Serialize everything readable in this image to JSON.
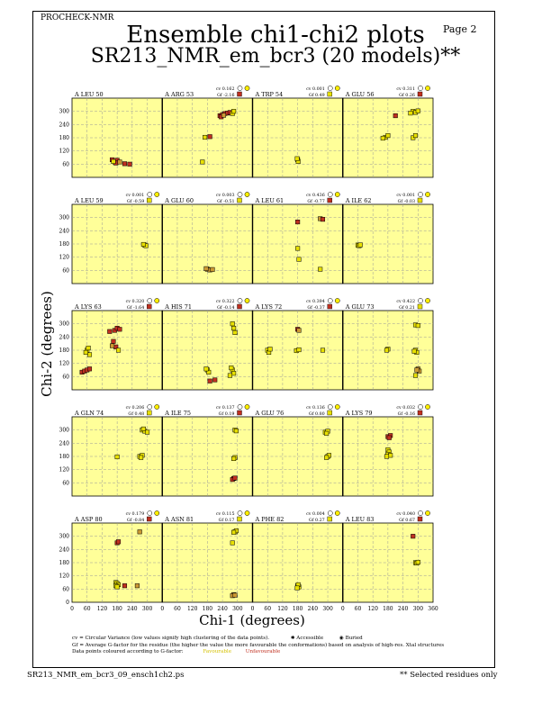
{
  "header": {
    "program": "PROCHECK-NMR",
    "page": "Page  2",
    "title": "Ensemble chi1-chi2 plots",
    "subtitle": "SR213_NMR_em_bcr3 (20 models)**"
  },
  "footer": {
    "filename": "SR213_NMR_em_bcr3_09_ensch1ch2.ps",
    "note": "** Selected residues only"
  },
  "legend": {
    "cv_text": "cv = Circular Variance (low values signify high clustering of the data points).",
    "gf_text": "Gf = Average G-factor for the residue (the higher the value the more favourable the conformations) based on analysis of high-res. Xtal structures",
    "colour_text": "Data points coloured according to G-factor:",
    "favourable": "Favourable",
    "unfavourable": "Unfavourable",
    "accessible": "Accessible",
    "buried": "Buried"
  },
  "colors": {
    "panel_bg": "#ffff99",
    "favourable": "#e8e000",
    "unfavourable": "#c03020",
    "mid": "#cc9933"
  },
  "chart_data": {
    "type": "scatter",
    "xlabel": "Chi-1 (degrees)",
    "ylabel": "Chi-2 (degrees)",
    "xlim": [
      0,
      360
    ],
    "ylim": [
      0,
      360
    ],
    "x_ticks": [
      0,
      60,
      120,
      180,
      240,
      300,
      360
    ],
    "y_ticks": [
      60,
      120,
      180,
      240,
      300
    ],
    "bottom_y_ticks": [
      0,
      60,
      120,
      180,
      240,
      300
    ],
    "grid": true,
    "panels": [
      {
        "label": "A LEU 50",
        "cv": "",
        "gf": "",
        "points": [
          [
            160,
            80,
            "u"
          ],
          [
            170,
            70,
            "u"
          ],
          [
            180,
            78,
            "u"
          ],
          [
            175,
            65,
            "u"
          ],
          [
            210,
            62,
            "u"
          ],
          [
            230,
            60,
            "u"
          ],
          [
            190,
            70,
            "m"
          ],
          [
            165,
            72,
            "f"
          ]
        ]
      },
      {
        "label": "A ARG 53",
        "cv": "cv 0.162",
        "gf": "Gf -2.16",
        "points": [
          [
            230,
            280,
            "u"
          ],
          [
            240,
            285,
            "u"
          ],
          [
            250,
            290,
            "u"
          ],
          [
            260,
            292,
            "u"
          ],
          [
            270,
            295,
            "u"
          ],
          [
            280,
            290,
            "f"
          ],
          [
            285,
            300,
            "f"
          ],
          [
            235,
            275,
            "u"
          ],
          [
            245,
            282,
            "m"
          ],
          [
            190,
            185,
            "u"
          ],
          [
            170,
            182,
            "f"
          ],
          [
            160,
            70,
            "f"
          ]
        ]
      },
      {
        "label": "A TRP 54",
        "cv": "cv 0.001",
        "gf": "Gf 0.49",
        "points": [
          [
            180,
            80,
            "f"
          ],
          [
            182,
            72,
            "f"
          ],
          [
            178,
            85,
            "f"
          ]
        ]
      },
      {
        "label": "A GLU 56",
        "cv": "cv 0.311",
        "gf": "Gf 0.26",
        "points": [
          [
            210,
            280,
            "u"
          ],
          [
            280,
            300,
            "f"
          ],
          [
            290,
            295,
            "f"
          ],
          [
            270,
            292,
            "f"
          ],
          [
            300,
            302,
            "f"
          ],
          [
            170,
            182,
            "f"
          ],
          [
            180,
            190,
            "f"
          ],
          [
            160,
            178,
            "f"
          ],
          [
            280,
            180,
            "f"
          ],
          [
            290,
            190,
            "f"
          ]
        ]
      },
      {
        "label": "A LEU 59",
        "cv": "cv 0.001",
        "gf": "Gf -0.59",
        "points": [
          [
            290,
            175,
            "f"
          ],
          [
            295,
            172,
            "f"
          ],
          [
            285,
            178,
            "f"
          ]
        ]
      },
      {
        "label": "A GLU 60",
        "cv": "cv 0.003",
        "gf": "Gf -0.51",
        "points": [
          [
            180,
            65,
            "m"
          ],
          [
            190,
            62,
            "m"
          ],
          [
            175,
            68,
            "m"
          ],
          [
            200,
            64,
            "m"
          ]
        ]
      },
      {
        "label": "A LEU 61",
        "cv": "cv 0.436",
        "gf": "Gf -0.77",
        "points": [
          [
            180,
            280,
            "u"
          ],
          [
            270,
            295,
            "m"
          ],
          [
            280,
            292,
            "u"
          ],
          [
            180,
            160,
            "f"
          ],
          [
            185,
            110,
            "f"
          ],
          [
            270,
            65,
            "f"
          ]
        ]
      },
      {
        "label": "A ILE 62",
        "cv": "cv 0.001",
        "gf": "Gf -0.03",
        "points": [
          [
            60,
            175,
            "f"
          ],
          [
            65,
            172,
            "f"
          ],
          [
            70,
            176,
            "f"
          ]
        ]
      },
      {
        "label": "A LYS 63",
        "cv": "cv 0.320",
        "gf": "Gf -1.64",
        "points": [
          [
            40,
            80,
            "u"
          ],
          [
            50,
            85,
            "u"
          ],
          [
            60,
            90,
            "u"
          ],
          [
            70,
            95,
            "u"
          ],
          [
            170,
            270,
            "u"
          ],
          [
            180,
            280,
            "u"
          ],
          [
            190,
            275,
            "u"
          ],
          [
            150,
            265,
            "u"
          ],
          [
            165,
            220,
            "u"
          ],
          [
            175,
            195,
            "u"
          ],
          [
            160,
            200,
            "m"
          ],
          [
            60,
            180,
            "f"
          ],
          [
            65,
            190,
            "f"
          ],
          [
            70,
            160,
            "f"
          ],
          [
            55,
            170,
            "f"
          ],
          [
            185,
            180,
            "f"
          ]
        ]
      },
      {
        "label": "A HIS 71",
        "cv": "cv 0.322",
        "gf": "Gf -0.14",
        "points": [
          [
            280,
            300,
            "f"
          ],
          [
            285,
            280,
            "f"
          ],
          [
            290,
            260,
            "f"
          ],
          [
            280,
            90,
            "f"
          ],
          [
            285,
            75,
            "f"
          ],
          [
            275,
            100,
            "f"
          ],
          [
            270,
            65,
            "f"
          ],
          [
            180,
            90,
            "f"
          ],
          [
            185,
            80,
            "f"
          ],
          [
            175,
            95,
            "f"
          ],
          [
            190,
            40,
            "u"
          ],
          [
            210,
            45,
            "u"
          ]
        ]
      },
      {
        "label": "A LYS 72",
        "cv": "cv 0.394",
        "gf": "Gf -0.37",
        "points": [
          [
            180,
            275,
            "u"
          ],
          [
            185,
            270,
            "m"
          ],
          [
            60,
            180,
            "f"
          ],
          [
            65,
            170,
            "f"
          ],
          [
            70,
            185,
            "f"
          ],
          [
            175,
            178,
            "f"
          ],
          [
            185,
            182,
            "f"
          ],
          [
            280,
            180,
            "f"
          ]
        ]
      },
      {
        "label": "A GLU 73",
        "cv": "cv 0.422",
        "gf": "Gf 0.21",
        "points": [
          [
            290,
            295,
            "f"
          ],
          [
            300,
            292,
            "f"
          ],
          [
            180,
            185,
            "f"
          ],
          [
            175,
            180,
            "f"
          ],
          [
            290,
            180,
            "f"
          ],
          [
            295,
            170,
            "f"
          ],
          [
            285,
            175,
            "f"
          ],
          [
            300,
            95,
            "m"
          ],
          [
            305,
            85,
            "m"
          ],
          [
            295,
            90,
            "m"
          ],
          [
            290,
            65,
            "f"
          ]
        ]
      },
      {
        "label": "A GLN 74",
        "cv": "cv 0.206",
        "gf": "Gf 0.48",
        "points": [
          [
            280,
            300,
            "f"
          ],
          [
            290,
            295,
            "f"
          ],
          [
            300,
            290,
            "f"
          ],
          [
            285,
            305,
            "f"
          ],
          [
            270,
            180,
            "f"
          ],
          [
            280,
            185,
            "f"
          ],
          [
            275,
            175,
            "f"
          ],
          [
            180,
            178,
            "f"
          ]
        ]
      },
      {
        "label": "A ILE 75",
        "cv": "cv 0.137",
        "gf": "Gf 0.19",
        "points": [
          [
            290,
            300,
            "f"
          ],
          [
            295,
            296,
            "f"
          ],
          [
            290,
            175,
            "f"
          ],
          [
            285,
            170,
            "f"
          ],
          [
            285,
            80,
            "u"
          ],
          [
            280,
            75,
            "u"
          ],
          [
            290,
            82,
            "u"
          ]
        ]
      },
      {
        "label": "A GLU 76",
        "cv": "cv 0.136",
        "gf": "Gf 0.80",
        "points": [
          [
            290,
            290,
            "f"
          ],
          [
            300,
            295,
            "f"
          ],
          [
            295,
            285,
            "f"
          ],
          [
            300,
            180,
            "f"
          ],
          [
            305,
            185,
            "f"
          ],
          [
            295,
            175,
            "f"
          ]
        ]
      },
      {
        "label": "A LYS 79",
        "cv": "cv 0.032",
        "gf": "Gf -0.16",
        "points": [
          [
            180,
            270,
            "u"
          ],
          [
            190,
            275,
            "u"
          ],
          [
            185,
            265,
            "u"
          ],
          [
            180,
            210,
            "f"
          ],
          [
            185,
            200,
            "f"
          ],
          [
            180,
            190,
            "f"
          ],
          [
            190,
            185,
            "f"
          ],
          [
            175,
            180,
            "f"
          ]
        ]
      },
      {
        "label": "A ASP 80",
        "cv": "cv 0.179",
        "gf": "Gf -0.84",
        "points": [
          [
            270,
            320,
            "m"
          ],
          [
            180,
            270,
            "u"
          ],
          [
            185,
            275,
            "u"
          ],
          [
            175,
            90,
            "f"
          ],
          [
            180,
            85,
            "f"
          ],
          [
            185,
            80,
            "f"
          ],
          [
            175,
            75,
            "f"
          ],
          [
            180,
            70,
            "f"
          ],
          [
            210,
            75,
            "u"
          ],
          [
            260,
            75,
            "m"
          ]
        ]
      },
      {
        "label": "A ASN 81",
        "cv": "cv 0.115",
        "gf": "Gf 0.17",
        "points": [
          [
            290,
            320,
            "f"
          ],
          [
            295,
            325,
            "f"
          ],
          [
            285,
            318,
            "f"
          ],
          [
            280,
            270,
            "f"
          ],
          [
            285,
            35,
            "m"
          ],
          [
            280,
            30,
            "m"
          ],
          [
            290,
            32,
            "m"
          ]
        ]
      },
      {
        "label": "A PHE 82",
        "cv": "cv 0.004",
        "gf": "Gf 0.27",
        "points": [
          [
            180,
            75,
            "f"
          ],
          [
            185,
            70,
            "f"
          ],
          [
            182,
            80,
            "f"
          ],
          [
            178,
            65,
            "f"
          ]
        ]
      },
      {
        "label": "A LEU 83",
        "cv": "cv 0.040",
        "gf": "Gf 0.67",
        "points": [
          [
            280,
            300,
            "u"
          ],
          [
            290,
            180,
            "f"
          ],
          [
            295,
            178,
            "f"
          ],
          [
            300,
            182,
            "f"
          ]
        ]
      }
    ]
  }
}
